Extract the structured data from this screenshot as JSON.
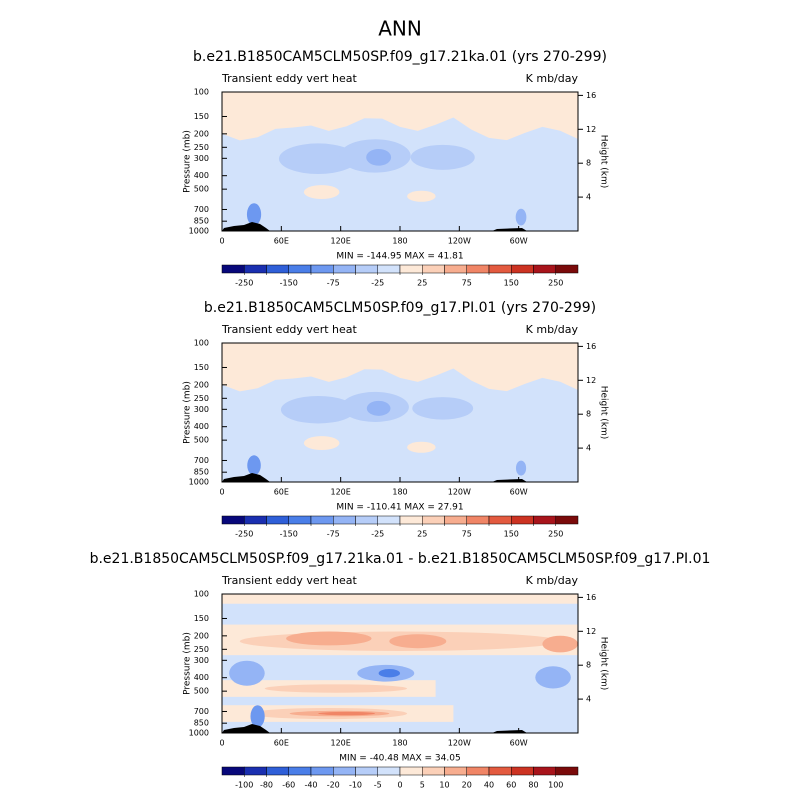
{
  "title": "ANN",
  "chart_data": [
    {
      "type": "contour",
      "title": "b.e21.B1850CAM5CLM50SP.f09_g17.21ka.01 (yrs 270-299)",
      "left_label": "Transient eddy vert heat",
      "right_label": "K mb/day",
      "ylabel": "Pressure (mb)",
      "y2label": "Height (km)",
      "xlim": [
        0,
        360
      ],
      "xticks": [
        0,
        {
          "value": 60,
          "label": "60E"
        },
        {
          "value": 120,
          "label": "120E"
        },
        180,
        {
          "value": 240,
          "label": "120W"
        },
        {
          "value": 300,
          "label": "60W"
        }
      ],
      "ylim": [
        1000,
        100
      ],
      "log_y": true,
      "yticks": [
        100,
        150,
        200,
        250,
        300,
        400,
        500,
        700,
        850,
        1000
      ],
      "y2lim": [
        0,
        16.4
      ],
      "y2ticks": [
        4,
        8,
        12,
        16
      ],
      "stats": "MIN = -144.95  MAX =  41.81",
      "colorbar": {
        "levels": [
          -250,
          -200,
          -150,
          -100,
          -75,
          -50,
          -25,
          0,
          25,
          50,
          75,
          100,
          150,
          200,
          250
        ],
        "label_step": 2,
        "colors": [
          "#08087a",
          "#1a2fb0",
          "#2f5fd8",
          "#4a7ee8",
          "#6d98f0",
          "#94b4f5",
          "#b6cdf8",
          "#d2e2fb",
          "#fde9d8",
          "#fbd0b8",
          "#f7ad8f",
          "#f08566",
          "#e35a3f",
          "#cc3322",
          "#a8141b",
          "#7a0a0a"
        ]
      }
    },
    {
      "type": "contour",
      "title": "b.e21.B1850CAM5CLM50SP.f09_g17.PI.01 (yrs 270-299)",
      "left_label": "Transient eddy vert heat",
      "right_label": "K mb/day",
      "ylabel": "Pressure (mb)",
      "y2label": "Height (km)",
      "xlim": [
        0,
        360
      ],
      "xticks": [
        0,
        {
          "value": 60,
          "label": "60E"
        },
        {
          "value": 120,
          "label": "120E"
        },
        180,
        {
          "value": 240,
          "label": "120W"
        },
        {
          "value": 300,
          "label": "60W"
        }
      ],
      "ylim": [
        1000,
        100
      ],
      "log_y": true,
      "yticks": [
        100,
        150,
        200,
        250,
        300,
        400,
        500,
        700,
        850,
        1000
      ],
      "y2lim": [
        0,
        16.4
      ],
      "y2ticks": [
        4,
        8,
        12,
        16
      ],
      "stats": "MIN = -110.41  MAX =  27.91",
      "colorbar": {
        "levels": [
          -250,
          -200,
          -150,
          -100,
          -75,
          -50,
          -25,
          0,
          25,
          50,
          75,
          100,
          150,
          200,
          250
        ],
        "label_step": 2,
        "colors": [
          "#08087a",
          "#1a2fb0",
          "#2f5fd8",
          "#4a7ee8",
          "#6d98f0",
          "#94b4f5",
          "#b6cdf8",
          "#d2e2fb",
          "#fde9d8",
          "#fbd0b8",
          "#f7ad8f",
          "#f08566",
          "#e35a3f",
          "#cc3322",
          "#a8141b",
          "#7a0a0a"
        ]
      }
    },
    {
      "type": "contour",
      "title": "b.e21.B1850CAM5CLM50SP.f09_g17.21ka.01 - b.e21.B1850CAM5CLM50SP.f09_g17.PI.01",
      "left_label": "Transient eddy vert heat",
      "right_label": "K mb/day",
      "ylabel": "Pressure (mb)",
      "y2label": "Height (km)",
      "xlim": [
        0,
        360
      ],
      "xticks": [
        0,
        {
          "value": 60,
          "label": "60E"
        },
        {
          "value": 120,
          "label": "120E"
        },
        180,
        {
          "value": 240,
          "label": "120W"
        },
        {
          "value": 300,
          "label": "60W"
        }
      ],
      "ylim": [
        1000,
        100
      ],
      "log_y": true,
      "yticks": [
        100,
        150,
        200,
        250,
        300,
        400,
        500,
        700,
        850,
        1000
      ],
      "y2lim": [
        0,
        16.4
      ],
      "y2ticks": [
        4,
        8,
        12,
        16
      ],
      "stats": "MIN = -40.48  MAX =  34.05",
      "colorbar": {
        "levels": [
          -100,
          -80,
          -60,
          -40,
          -20,
          -10,
          -5,
          0,
          5,
          10,
          20,
          40,
          60,
          80,
          100
        ],
        "label_step": 1,
        "colors": [
          "#08087a",
          "#1a2fb0",
          "#2f5fd8",
          "#4a7ee8",
          "#6d98f0",
          "#94b4f5",
          "#b6cdf8",
          "#d2e2fb",
          "#fde9d8",
          "#fbd0b8",
          "#f7ad8f",
          "#f08566",
          "#e35a3f",
          "#cc3322",
          "#a8141b",
          "#7a0a0a"
        ]
      }
    }
  ]
}
